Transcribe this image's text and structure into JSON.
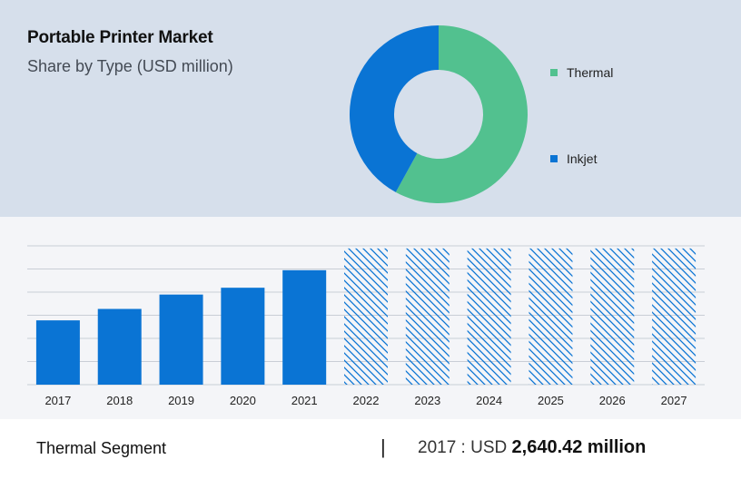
{
  "header": {
    "title": "Portable Printer Market",
    "subtitle": "Share by Type (USD million)"
  },
  "colors": {
    "thermal": "#52c18f",
    "inkjet": "#0a74d4",
    "bar": "#0a74d4",
    "grid": "#c9ced6"
  },
  "chart_data": [
    {
      "type": "pie",
      "variant": "donut",
      "legend_position": "right",
      "slices": [
        {
          "label": "Thermal",
          "value": 58
        },
        {
          "label": "Inkjet",
          "value": 42
        }
      ]
    },
    {
      "type": "bar",
      "categories": [
        "2017",
        "2018",
        "2019",
        "2020",
        "2021",
        "2022",
        "2023",
        "2024",
        "2025",
        "2026",
        "2027"
      ],
      "values": [
        2640.42,
        3110,
        3700,
        3980,
        4700,
        null,
        null,
        null,
        null,
        null,
        null
      ],
      "forecast_categories": [
        "2022",
        "2023",
        "2024",
        "2025",
        "2026",
        "2027"
      ],
      "forecast_style": "hatched",
      "ylim": [
        0,
        5700
      ],
      "grid": true
    }
  ],
  "footer": {
    "segment_label": "Thermal Segment",
    "separator": "|",
    "year_prefix": "2017 : USD",
    "value_text": "2,640.42 million"
  }
}
